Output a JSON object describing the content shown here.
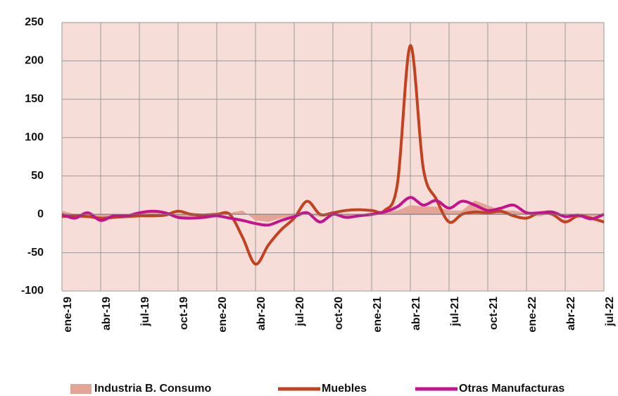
{
  "chart_data": {
    "type": "line",
    "categories": [
      "ene-19",
      null,
      null,
      "abr-19",
      null,
      null,
      "jul-19",
      null,
      null,
      "oct-19",
      null,
      null,
      "ene-20",
      null,
      null,
      "abr-20",
      null,
      null,
      "jul-20",
      null,
      null,
      "oct-20",
      null,
      null,
      "ene-21",
      null,
      null,
      "abr-21",
      null,
      null,
      "jul-21",
      null,
      null,
      "oct-21",
      null,
      null,
      "ene-22",
      null,
      null,
      "abr-22",
      null,
      null,
      "jul-22"
    ],
    "series": [
      {
        "name": "Industria B. Consumo",
        "kind": "area",
        "color": "#e3a696",
        "values": [
          5,
          0,
          -3,
          -5,
          -3,
          -2,
          2,
          3,
          2,
          -3,
          -3,
          -2,
          0,
          2,
          5,
          -8,
          -10,
          -5,
          -3,
          0,
          -3,
          0,
          -2,
          -3,
          0,
          3,
          5,
          12,
          10,
          10,
          5,
          5,
          18,
          12,
          5,
          5,
          2,
          -3,
          2,
          0,
          -5,
          -3,
          -2
        ]
      },
      {
        "name": "Muebles",
        "kind": "line",
        "color": "#c2421f",
        "values": [
          -3,
          -2,
          -3,
          -5,
          -4,
          -3,
          -2,
          -2,
          -1,
          4,
          0,
          -1,
          0,
          0,
          -30,
          -65,
          -40,
          -20,
          -5,
          17,
          0,
          2,
          5,
          6,
          5,
          5,
          40,
          220,
          60,
          20,
          -10,
          0,
          3,
          2,
          4,
          -2,
          -5,
          2,
          0,
          -10,
          -2,
          -5,
          -10
        ]
      },
      {
        "name": "Otras Manufacturas",
        "kind": "line",
        "color": "#c4138c",
        "values": [
          0,
          -5,
          2,
          -8,
          -2,
          -2,
          2,
          4,
          2,
          -4,
          -5,
          -4,
          -2,
          -5,
          -8,
          -12,
          -14,
          -8,
          -3,
          2,
          -10,
          0,
          -4,
          -2,
          0,
          3,
          10,
          22,
          12,
          18,
          8,
          17,
          12,
          5,
          8,
          12,
          2,
          2,
          3,
          -3,
          -1,
          -6,
          0
        ]
      }
    ],
    "ylim": [
      -100,
      250
    ],
    "yticks": [
      -100,
      -50,
      0,
      50,
      100,
      150,
      200,
      250
    ],
    "grid": true,
    "plot_background": "#f6ddd8",
    "negative_tick_color": "#e8141c",
    "legend": "bottom"
  }
}
